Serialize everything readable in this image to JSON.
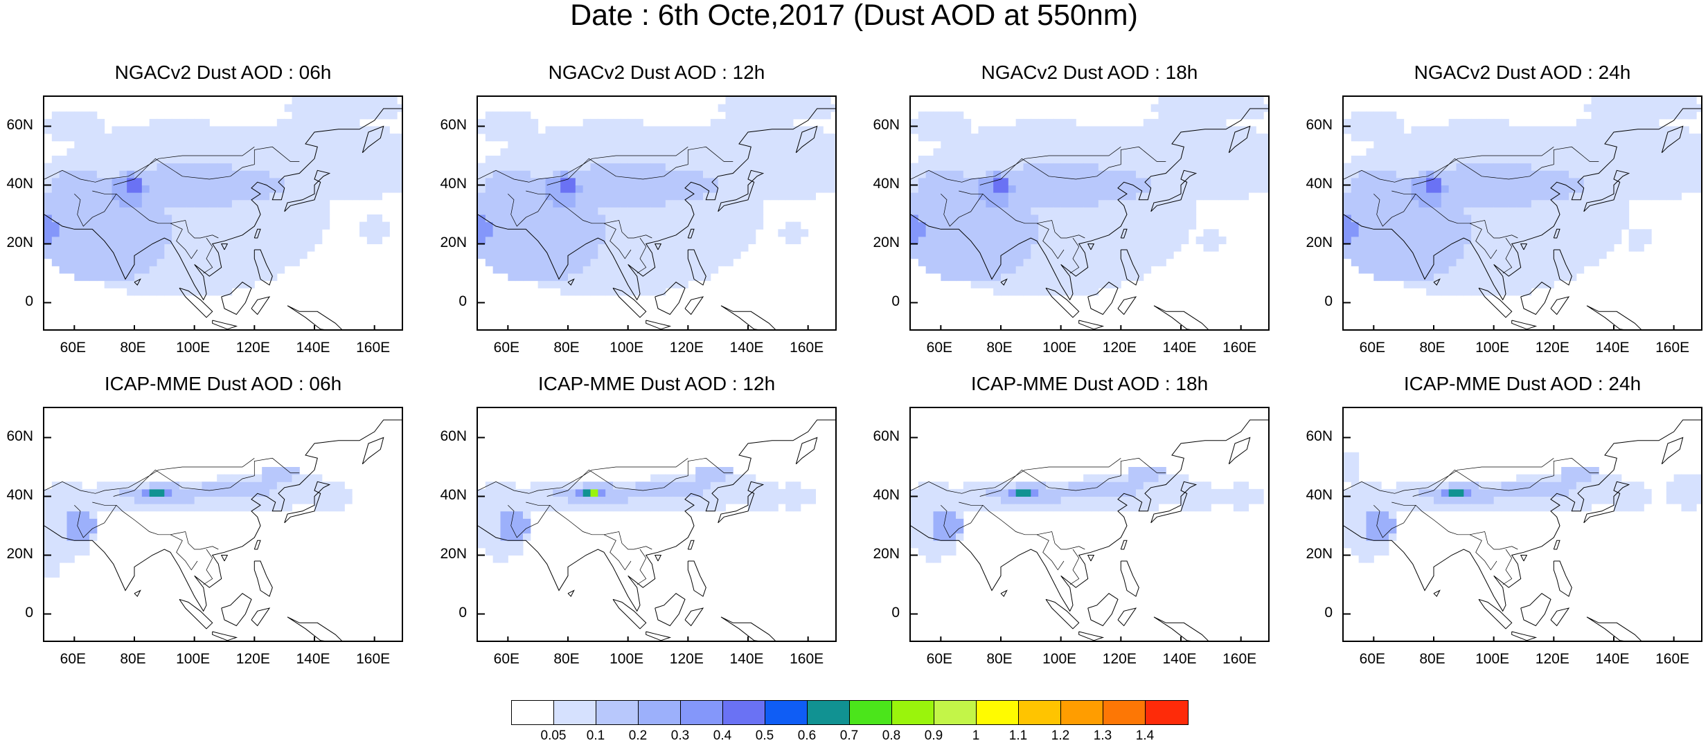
{
  "title": "Date : 6th Octe,2017 (Dust AOD at 550nm)",
  "lat_labels": [
    "60N",
    "40N",
    "20N",
    "0"
  ],
  "lon_labels": [
    "60E",
    "80E",
    "100E",
    "120E",
    "140E",
    "160E"
  ],
  "lat_range": [
    -10,
    70
  ],
  "lon_range": [
    50,
    170
  ],
  "panels": [
    {
      "title": "NGACv2 Dust AOD : 06h",
      "model": "NGACv2",
      "hour": "06h"
    },
    {
      "title": "NGACv2 Dust AOD : 12h",
      "model": "NGACv2",
      "hour": "12h"
    },
    {
      "title": "NGACv2 Dust AOD : 18h",
      "model": "NGACv2",
      "hour": "18h"
    },
    {
      "title": "NGACv2 Dust AOD : 24h",
      "model": "NGACv2",
      "hour": "24h"
    },
    {
      "title": "ICAP-MME Dust AOD : 06h",
      "model": "ICAP-MME",
      "hour": "06h"
    },
    {
      "title": "ICAP-MME Dust AOD : 12h",
      "model": "ICAP-MME",
      "hour": "12h"
    },
    {
      "title": "ICAP-MME Dust AOD : 18h",
      "model": "ICAP-MME",
      "hour": "18h"
    },
    {
      "title": "ICAP-MME Dust AOD : 24h",
      "model": "ICAP-MME",
      "hour": "24h"
    }
  ],
  "colorbar": {
    "labels": [
      "0.05",
      "0.1",
      "0.2",
      "0.3",
      "0.4",
      "0.5",
      "0.6",
      "0.7",
      "0.8",
      "0.9",
      "1",
      "1.1",
      "1.2",
      "1.3",
      "1.4"
    ],
    "colors": [
      "#ffffff",
      "#d6e1fe",
      "#b8c8fc",
      "#9cb0fb",
      "#8497fa",
      "#6a72f4",
      "#0f5df5",
      "#119292",
      "#4be51b",
      "#9af40c",
      "#c3f548",
      "#fffb00",
      "#ffc400",
      "#ff9d00",
      "#fd7705",
      "#fe2b09"
    ]
  }
}
